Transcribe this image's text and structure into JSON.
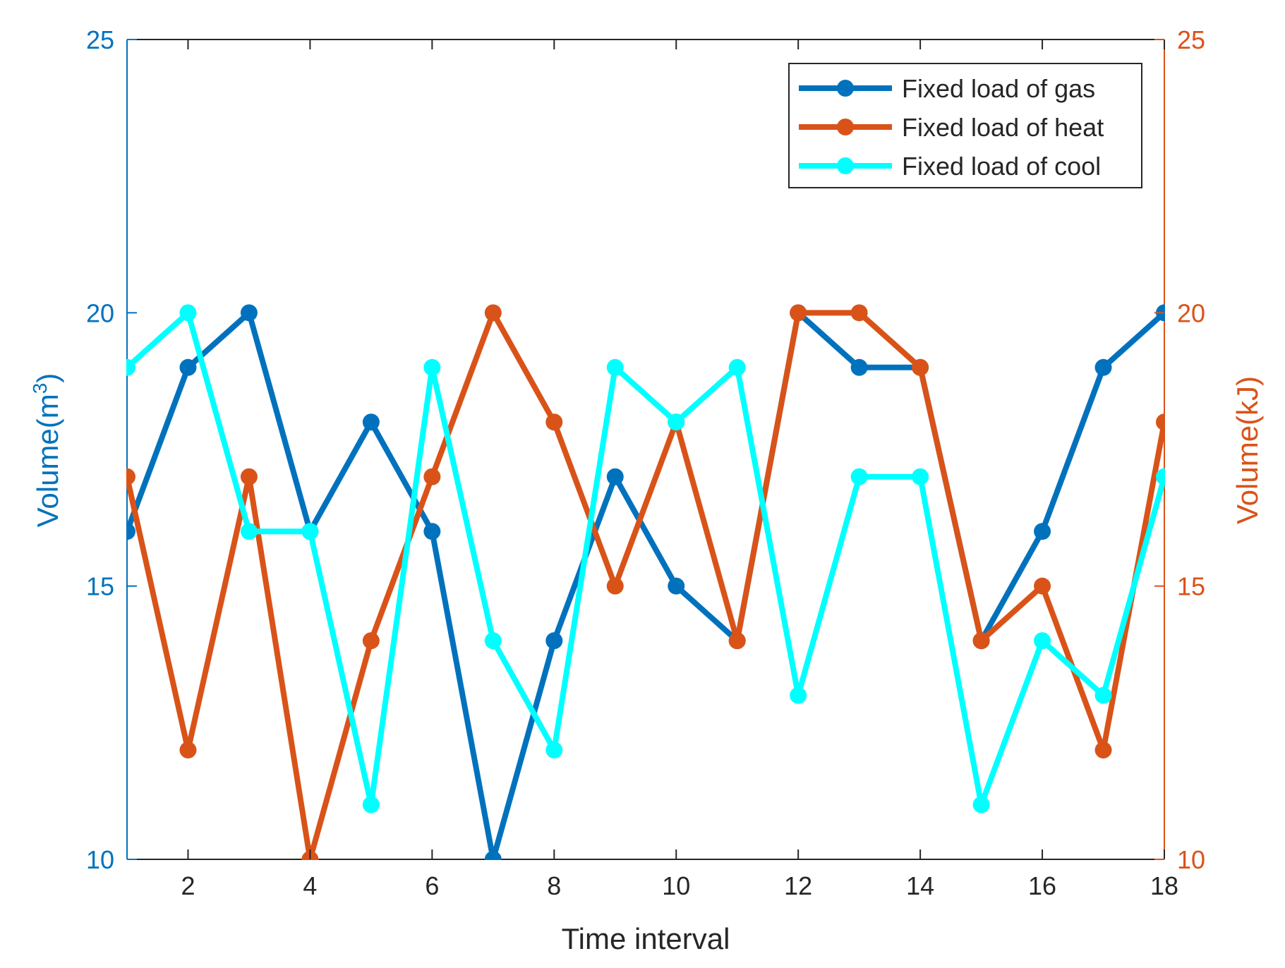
{
  "chart_data": {
    "type": "line",
    "title": "",
    "xlabel": "Time interval",
    "ylabel_left": "Volume(m",
    "ylabel_left_sup": "3",
    "ylabel_left_close": ")",
    "ylabel_right": "Volume(kJ)",
    "x": [
      1,
      2,
      3,
      4,
      5,
      6,
      7,
      8,
      9,
      10,
      11,
      12,
      13,
      14,
      15,
      16,
      17,
      18
    ],
    "xlim": [
      1,
      18
    ],
    "xticks": [
      2,
      4,
      6,
      8,
      10,
      12,
      14,
      16,
      18
    ],
    "xtick_labels": [
      "2",
      "4",
      "6",
      "8",
      "10",
      "12",
      "14",
      "16",
      "18"
    ],
    "ylim_left": [
      10,
      25
    ],
    "ylim_right": [
      10,
      25
    ],
    "yticks": [
      10,
      15,
      20,
      25
    ],
    "ytick_labels": [
      "10",
      "15",
      "20",
      "25"
    ],
    "legend_position": "top-right",
    "grid": false,
    "colors": {
      "left_axis": "#0072BD",
      "right_axis": "#D95319",
      "text": "#262626",
      "frame": "#262626"
    },
    "series": [
      {
        "name": "Fixed load of gas",
        "axis": "left",
        "color": "#0072BD",
        "values": [
          16,
          19,
          20,
          16,
          18,
          16,
          10,
          14,
          17,
          15,
          14,
          20,
          19,
          19,
          14,
          16,
          19,
          20
        ]
      },
      {
        "name": "Fixed load of heat",
        "axis": "right",
        "color": "#D95319",
        "values": [
          17,
          12,
          17,
          10,
          14,
          17,
          20,
          18,
          15,
          18,
          14,
          20,
          20,
          19,
          14,
          15,
          12,
          18
        ]
      },
      {
        "name": "Fixed load of cool",
        "axis": "left",
        "color": "#00FFFF",
        "values": [
          19,
          20,
          16,
          16,
          11,
          19,
          14,
          12,
          19,
          18,
          19,
          13,
          17,
          17,
          11,
          14,
          13,
          17
        ]
      }
    ]
  }
}
